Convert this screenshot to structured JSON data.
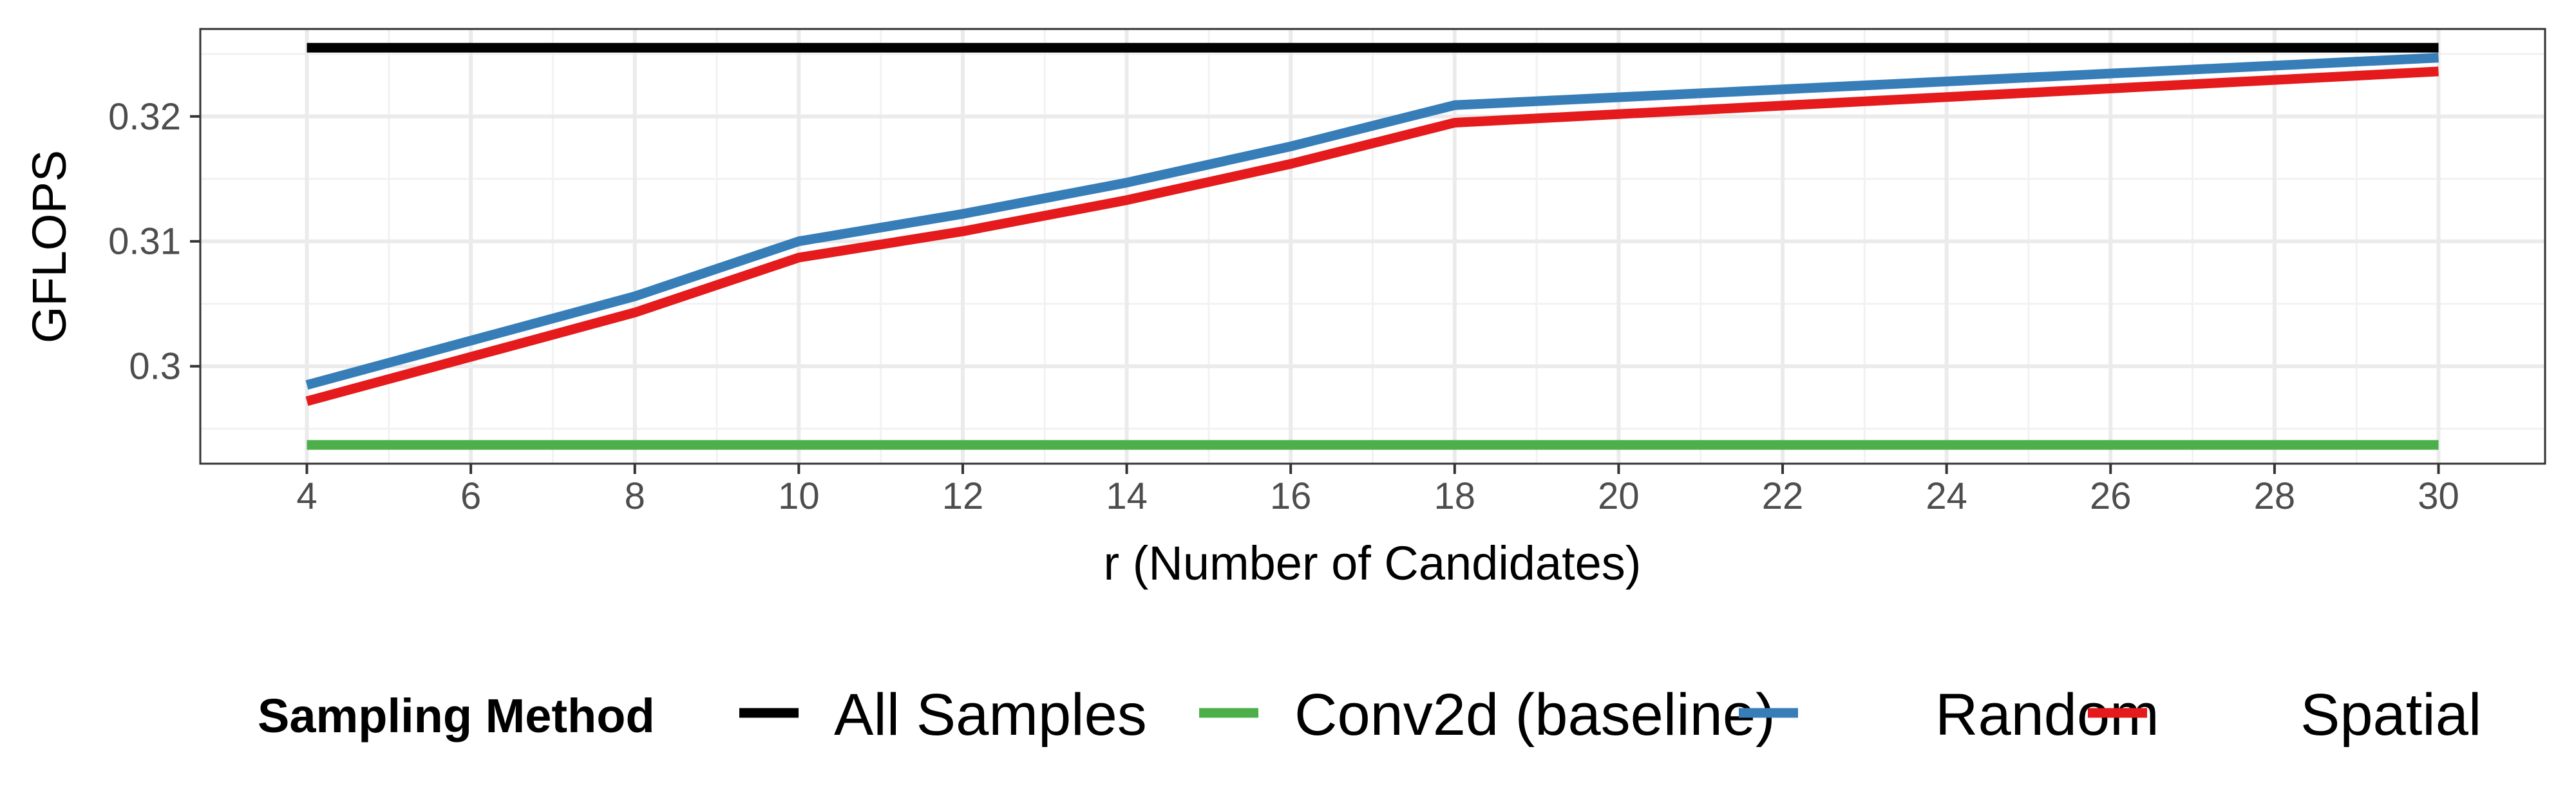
{
  "chart_data": {
    "type": "line",
    "xlabel": "r (Number of Candidates)",
    "ylabel": "GFLOPS",
    "x": [
      4,
      8,
      10,
      12,
      14,
      16,
      18,
      30
    ],
    "xlim": [
      2.7,
      31.3
    ],
    "ylim": [
      0.2922,
      0.327
    ],
    "x_ticks": [
      4,
      6,
      8,
      10,
      12,
      14,
      16,
      18,
      20,
      22,
      24,
      26,
      28,
      30
    ],
    "y_ticks": [
      0.3,
      0.31,
      0.32
    ],
    "y_tick_labels": [
      "0.3",
      "0.31",
      "0.32"
    ],
    "grid": true,
    "series": [
      {
        "name": "All Samples",
        "color": "#000000",
        "values": [
          0.3255,
          0.3255,
          0.3255,
          0.3255,
          0.3255,
          0.3255,
          0.3255,
          0.3255
        ]
      },
      {
        "name": "Conv2d (baseline)",
        "color": "#4daf4a",
        "values": [
          0.2937,
          0.2937,
          0.2937,
          0.2937,
          0.2937,
          0.2937,
          0.2937,
          0.2937
        ]
      },
      {
        "name": "Random",
        "color": "#377eb8",
        "values": [
          0.2985,
          0.3056,
          0.31,
          0.3122,
          0.3147,
          0.3176,
          0.3209,
          0.3247
        ]
      },
      {
        "name": "Spatial",
        "color": "#e41a1c",
        "values": [
          0.2972,
          0.3043,
          0.3087,
          0.3108,
          0.3133,
          0.3162,
          0.3195,
          0.3236
        ]
      }
    ],
    "legend": {
      "title": "Sampling Method",
      "position": "bottom"
    }
  }
}
